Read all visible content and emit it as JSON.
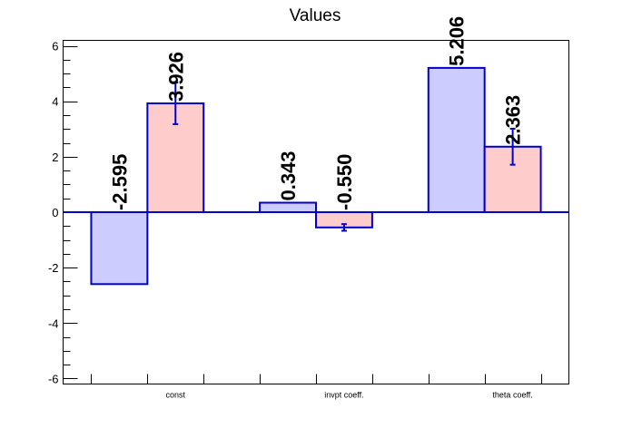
{
  "chart_data": {
    "type": "bar",
    "title": "Values",
    "categories": [
      "const",
      "invpt coeff.",
      "theta coeff."
    ],
    "ylim": [
      -6.2,
      6.2
    ],
    "yticks": [
      -6,
      -4,
      -2,
      0,
      2,
      4,
      6
    ],
    "series": [
      {
        "values": [
          -2.595,
          0.343,
          5.206
        ],
        "labels": [
          "-2.595",
          "0.343",
          "5.206"
        ],
        "errors": [
          0,
          0,
          0
        ],
        "fill": "#ccccff",
        "stroke": "#0000cc"
      },
      {
        "values": [
          3.926,
          -0.55,
          2.363
        ],
        "labels": [
          "3.926",
          "-0.550",
          "2.363"
        ],
        "errors": [
          0.75,
          0.12,
          0.65
        ],
        "fill": "#ffcccc",
        "stroke": "#0000cc"
      }
    ],
    "grid": false,
    "legend": "none"
  }
}
